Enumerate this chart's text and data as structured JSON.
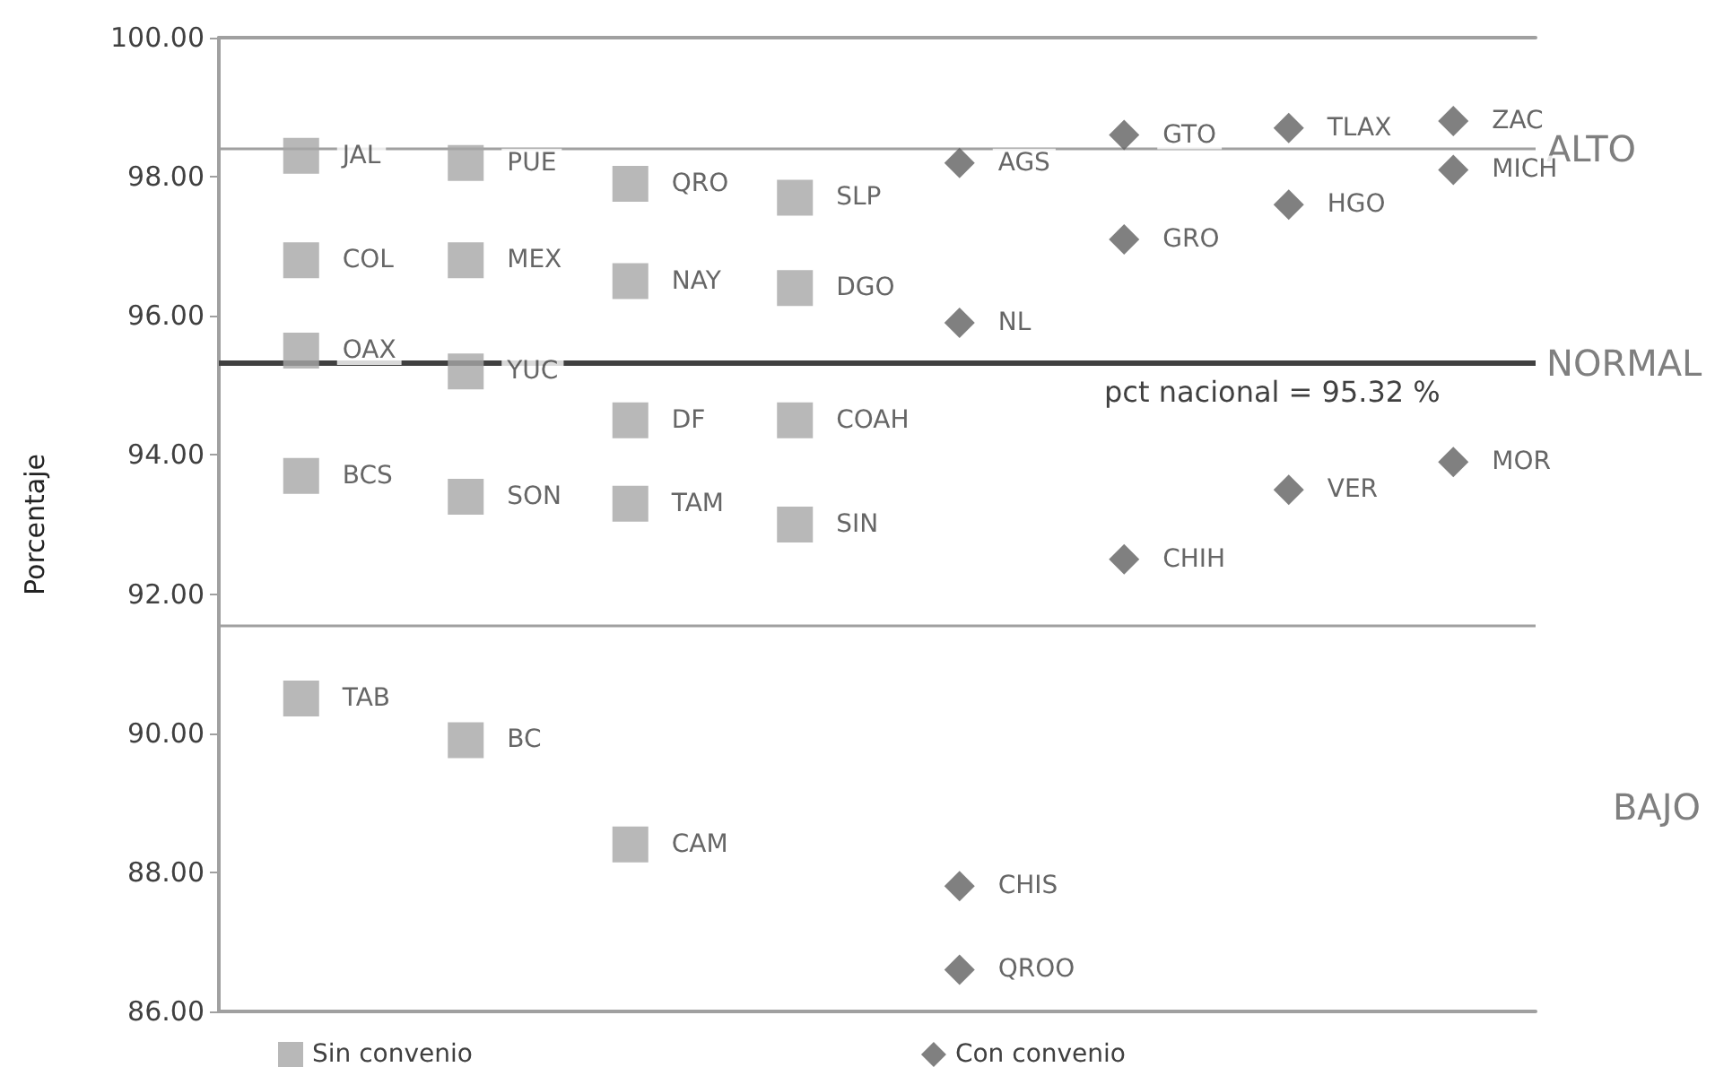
{
  "chart_data": {
    "type": "scatter",
    "ylabel": "Porcentaje",
    "categories": [
      null,
      null,
      null,
      null,
      null,
      null,
      null,
      null
    ],
    "ylim": [
      86,
      100
    ],
    "yticks": [
      {
        "value": 86,
        "label": "86.00"
      },
      {
        "value": 88,
        "label": "88.00"
      },
      {
        "value": 90,
        "label": "90.00"
      },
      {
        "value": 92,
        "label": "92.00"
      },
      {
        "value": 94,
        "label": "94.00"
      },
      {
        "value": 96,
        "label": "96.00"
      },
      {
        "value": 98,
        "label": "98.00"
      },
      {
        "value": 100,
        "label": "100.00"
      }
    ],
    "grid": false,
    "legend": "bottom",
    "series": [
      {
        "name": "Sin convenio",
        "color": "#a6a6a6",
        "marker": "square",
        "values": [
          98.3,
          98.2,
          97.9,
          97.7,
          null,
          null,
          null,
          null
        ],
        "value_labels": [
          "JAL",
          "PUE",
          "QRO",
          "SLP",
          null,
          null,
          null,
          null
        ]
      },
      {
        "color": "#a6a6a6",
        "marker": "square",
        "values": [
          96.8,
          96.8,
          96.5,
          96.4,
          null,
          null,
          null,
          null
        ],
        "value_labels": [
          "COL",
          "MEX",
          "NAY",
          "DGO",
          null,
          null,
          null,
          null
        ]
      },
      {
        "color": "#a6a6a6",
        "marker": "square",
        "values": [
          95.5,
          95.2,
          94.5,
          94.5,
          null,
          null,
          null,
          null
        ],
        "value_labels": [
          "OAX",
          "YUC",
          "DF",
          "COAH",
          null,
          null,
          null,
          null
        ]
      },
      {
        "color": "#a6a6a6",
        "marker": "square",
        "values": [
          93.7,
          93.4,
          93.3,
          93.0,
          null,
          null,
          null,
          null
        ],
        "value_labels": [
          "BCS",
          "SON",
          "TAM",
          "SIN",
          null,
          null,
          null,
          null
        ]
      },
      {
        "color": "#a6a6a6",
        "marker": "square",
        "values": [
          90.5,
          89.9,
          88.4,
          null,
          null,
          null,
          null,
          null
        ],
        "value_labels": [
          "TAB",
          "BC",
          "CAM",
          null,
          null,
          null,
          null,
          null
        ]
      },
      {
        "name": "Con convenio",
        "color": "#606060",
        "marker": "diamond",
        "values": [
          null,
          null,
          null,
          null,
          98.2,
          98.6,
          98.7,
          98.8
        ],
        "value_labels": [
          null,
          null,
          null,
          null,
          "AGS",
          "GTO",
          "TLAX",
          "ZAC"
        ]
      },
      {
        "color": "#606060",
        "marker": "diamond",
        "values": [
          null,
          null,
          null,
          null,
          95.9,
          97.1,
          97.6,
          98.1
        ],
        "value_labels": [
          null,
          null,
          null,
          null,
          "NL",
          "GRO",
          "HGO",
          "MICH"
        ]
      },
      {
        "color": "#606060",
        "marker": "diamond",
        "values": [
          null,
          null,
          null,
          null,
          87.8,
          92.5,
          93.5,
          93.9
        ],
        "value_labels": [
          null,
          null,
          null,
          null,
          "CHIS",
          "CHIH",
          "VER",
          "MOR"
        ]
      },
      {
        "color": "#606060",
        "marker": "diamond",
        "values": [
          null,
          null,
          null,
          null,
          86.6,
          null,
          null,
          null
        ],
        "value_labels": [
          null,
          null,
          null,
          null,
          "QROO",
          null,
          null,
          null
        ]
      }
    ],
    "ref_lines": [
      {
        "axis": "y",
        "value": 98.4,
        "label": "ALTO",
        "color": "#a0a0a0"
      },
      {
        "axis": "y",
        "value": 95.32,
        "label": "NORMAL",
        "color": "#404040"
      },
      {
        "axis": "y",
        "value": 91.55,
        "label": null,
        "color": "#a0a0a0"
      }
    ],
    "annotations": [
      {
        "text": "pct nacional = 95.32 %",
        "y": 95.32
      },
      "BAJO"
    ]
  }
}
